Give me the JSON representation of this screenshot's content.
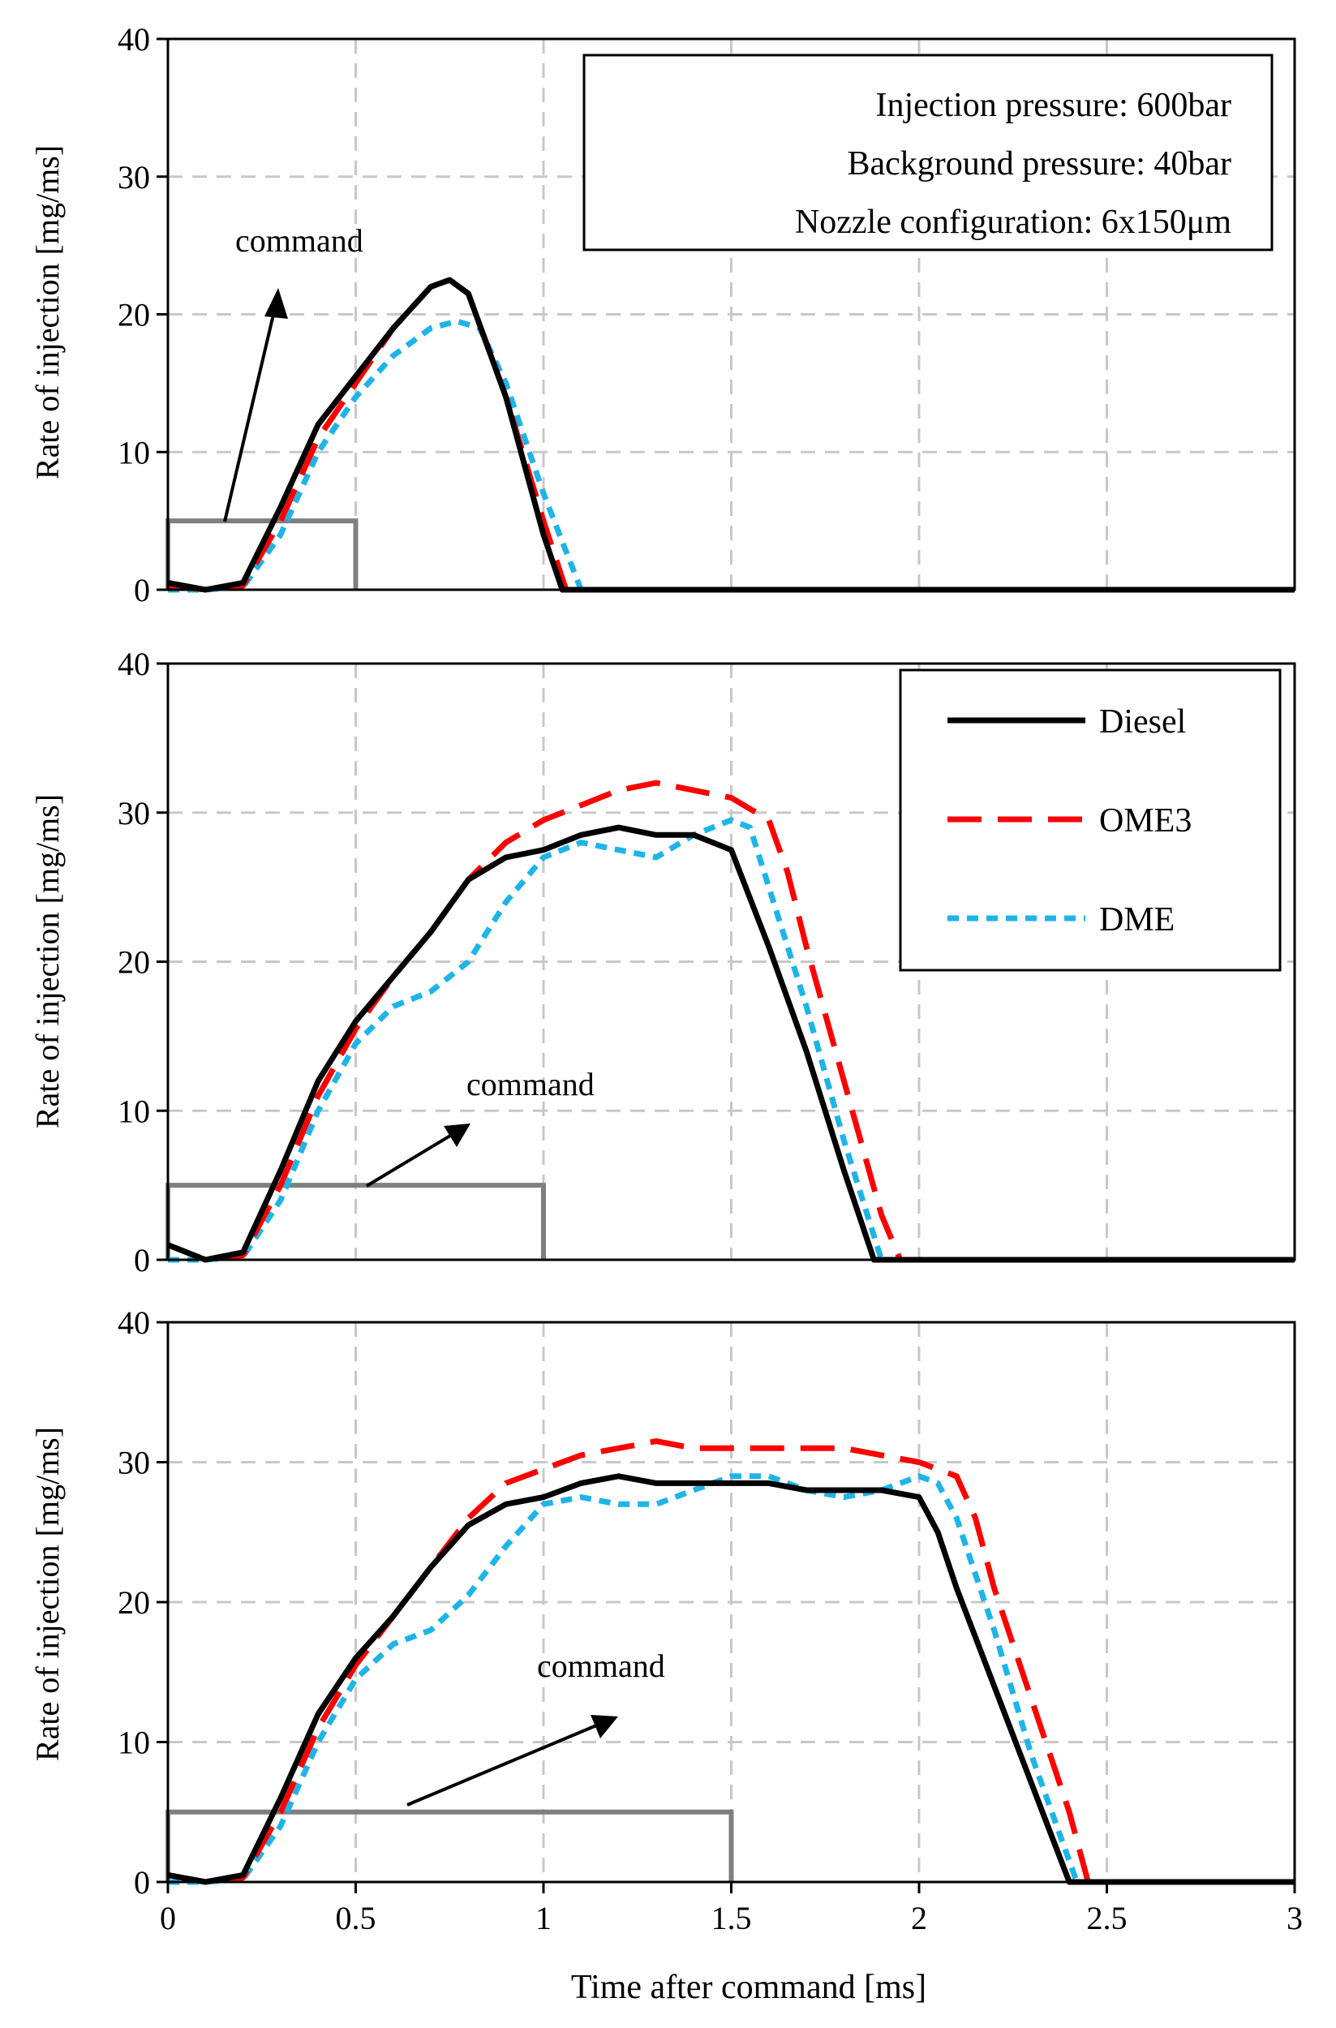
{
  "colors": {
    "diesel": "#000000",
    "ome3": "#ff0000",
    "dme": "#1eb4e8",
    "command": "#7f7f7f",
    "grid": "#c8c8c8",
    "frame": "#000000"
  },
  "figure": {
    "xlabel": "Time after command [ms]",
    "x_ticks": [
      "0",
      "0.5",
      "1",
      "1.5",
      "2",
      "2.5",
      "3"
    ]
  },
  "info_box": {
    "lines": [
      "Injection pressure: 600bar",
      "Background pressure: 40bar",
      "Nozzle configuration: 6x150μm"
    ]
  },
  "legend": {
    "entries": [
      "Diesel",
      "OME3",
      "DME"
    ]
  },
  "chart_data": [
    {
      "type": "line",
      "ylabel": "Rate of  injection [mg/ms]",
      "xlim": [
        0,
        3
      ],
      "ylim": [
        0,
        40
      ],
      "y_ticks": [
        "0",
        "10",
        "20",
        "30",
        "40"
      ],
      "grid": true,
      "annotation": "command",
      "command_pulse": {
        "start": 0,
        "end": 0.5,
        "level": 5
      },
      "series": [
        {
          "name": "Diesel",
          "x": [
            0,
            0.1,
            0.2,
            0.3,
            0.4,
            0.5,
            0.6,
            0.7,
            0.75,
            0.8,
            0.9,
            1.0,
            1.05,
            3.0
          ],
          "y": [
            0.5,
            0,
            0.5,
            6,
            12,
            15.5,
            19,
            22,
            22.5,
            21.5,
            14,
            4,
            0,
            0
          ]
        },
        {
          "name": "OME3",
          "x": [
            0,
            0.1,
            0.2,
            0.3,
            0.4,
            0.5,
            0.6,
            0.7,
            0.75,
            0.8,
            0.9,
            1.0,
            1.06,
            3.0
          ],
          "y": [
            0.3,
            0,
            0.3,
            5,
            11,
            15,
            19,
            22,
            22.5,
            21.5,
            14,
            5,
            0,
            0
          ]
        },
        {
          "name": "DME",
          "x": [
            0,
            0.1,
            0.2,
            0.3,
            0.4,
            0.5,
            0.6,
            0.7,
            0.77,
            0.83,
            0.9,
            1.0,
            1.1,
            3.0
          ],
          "y": [
            0,
            0,
            0.2,
            4,
            10,
            14,
            17,
            19,
            19.5,
            19,
            15,
            7,
            0,
            0
          ]
        }
      ]
    },
    {
      "type": "line",
      "ylabel": "Rate of  injection [mg/ms]",
      "xlim": [
        0,
        3
      ],
      "ylim": [
        0,
        40
      ],
      "y_ticks": [
        "0",
        "10",
        "20",
        "30",
        "40"
      ],
      "grid": true,
      "annotation": "command",
      "command_pulse": {
        "start": 0,
        "end": 1.0,
        "level": 5
      },
      "series": [
        {
          "name": "Diesel",
          "x": [
            0,
            0.1,
            0.2,
            0.3,
            0.4,
            0.5,
            0.6,
            0.7,
            0.8,
            0.9,
            1.0,
            1.1,
            1.2,
            1.3,
            1.4,
            1.5,
            1.6,
            1.7,
            1.8,
            1.88,
            3.0
          ],
          "y": [
            1,
            0,
            0.5,
            6,
            12,
            16,
            19,
            22,
            25.5,
            27,
            27.5,
            28.5,
            29,
            28.5,
            28.5,
            27.5,
            21,
            14,
            6,
            0,
            0
          ]
        },
        {
          "name": "OME3",
          "x": [
            0,
            0.1,
            0.2,
            0.3,
            0.4,
            0.5,
            0.6,
            0.7,
            0.8,
            0.9,
            1.0,
            1.1,
            1.2,
            1.3,
            1.4,
            1.5,
            1.6,
            1.65,
            1.7,
            1.8,
            1.9,
            1.95,
            3.0
          ],
          "y": [
            1,
            0,
            0.3,
            5,
            11,
            15.5,
            19,
            22,
            25.5,
            28,
            29.5,
            30.5,
            31.5,
            32,
            31.5,
            31,
            29.5,
            26,
            21,
            12,
            3,
            0,
            0
          ]
        },
        {
          "name": "DME",
          "x": [
            0,
            0.1,
            0.2,
            0.3,
            0.4,
            0.5,
            0.6,
            0.7,
            0.8,
            0.9,
            1.0,
            1.1,
            1.2,
            1.3,
            1.4,
            1.5,
            1.55,
            1.6,
            1.7,
            1.8,
            1.9,
            3.0
          ],
          "y": [
            0,
            0,
            0.2,
            4,
            10,
            14.5,
            17,
            18,
            20,
            24,
            27,
            28,
            27.5,
            27,
            28.5,
            29.5,
            29,
            25,
            17,
            8,
            0,
            0
          ]
        }
      ]
    },
    {
      "type": "line",
      "ylabel": "Rate of  injection [mg/ms]",
      "xlim": [
        0,
        3
      ],
      "ylim": [
        0,
        40
      ],
      "y_ticks": [
        "0",
        "10",
        "20",
        "30",
        "40"
      ],
      "grid": true,
      "annotation": "command",
      "command_pulse": {
        "start": 0,
        "end": 1.5,
        "level": 5
      },
      "series": [
        {
          "name": "Diesel",
          "x": [
            0,
            0.1,
            0.2,
            0.3,
            0.4,
            0.5,
            0.6,
            0.7,
            0.8,
            0.9,
            1.0,
            1.1,
            1.2,
            1.3,
            1.4,
            1.5,
            1.6,
            1.7,
            1.8,
            1.9,
            2.0,
            2.05,
            2.1,
            2.2,
            2.3,
            2.4,
            3.0
          ],
          "y": [
            0.5,
            0,
            0.5,
            6,
            12,
            16,
            19,
            22.5,
            25.5,
            27,
            27.5,
            28.5,
            29,
            28.5,
            28.5,
            28.5,
            28.5,
            28,
            28,
            28,
            27.5,
            25,
            21,
            14,
            7,
            0,
            0
          ]
        },
        {
          "name": "OME3",
          "x": [
            0,
            0.1,
            0.2,
            0.3,
            0.4,
            0.5,
            0.6,
            0.7,
            0.8,
            0.9,
            1.0,
            1.1,
            1.2,
            1.3,
            1.4,
            1.5,
            1.6,
            1.7,
            1.8,
            1.9,
            2.0,
            2.1,
            2.15,
            2.2,
            2.3,
            2.4,
            2.45,
            3.0
          ],
          "y": [
            0.5,
            0,
            0.3,
            5,
            11,
            15.5,
            19,
            22.5,
            26,
            28.5,
            29.5,
            30.5,
            31,
            31.5,
            31,
            31,
            31,
            31,
            31,
            30.5,
            30,
            29,
            26,
            21,
            13,
            5,
            0,
            0
          ]
        },
        {
          "name": "DME",
          "x": [
            0,
            0.1,
            0.2,
            0.3,
            0.4,
            0.5,
            0.6,
            0.7,
            0.8,
            0.9,
            1.0,
            1.1,
            1.2,
            1.3,
            1.4,
            1.5,
            1.6,
            1.7,
            1.8,
            1.9,
            2.0,
            2.05,
            2.1,
            2.2,
            2.3,
            2.42,
            3.0
          ],
          "y": [
            0,
            0,
            0.2,
            4,
            10,
            14.5,
            17,
            18,
            20.5,
            24,
            27,
            27.5,
            27,
            27,
            28,
            29,
            29,
            28,
            27.5,
            28,
            29,
            28.5,
            26,
            18,
            9,
            0,
            0
          ]
        }
      ]
    }
  ]
}
